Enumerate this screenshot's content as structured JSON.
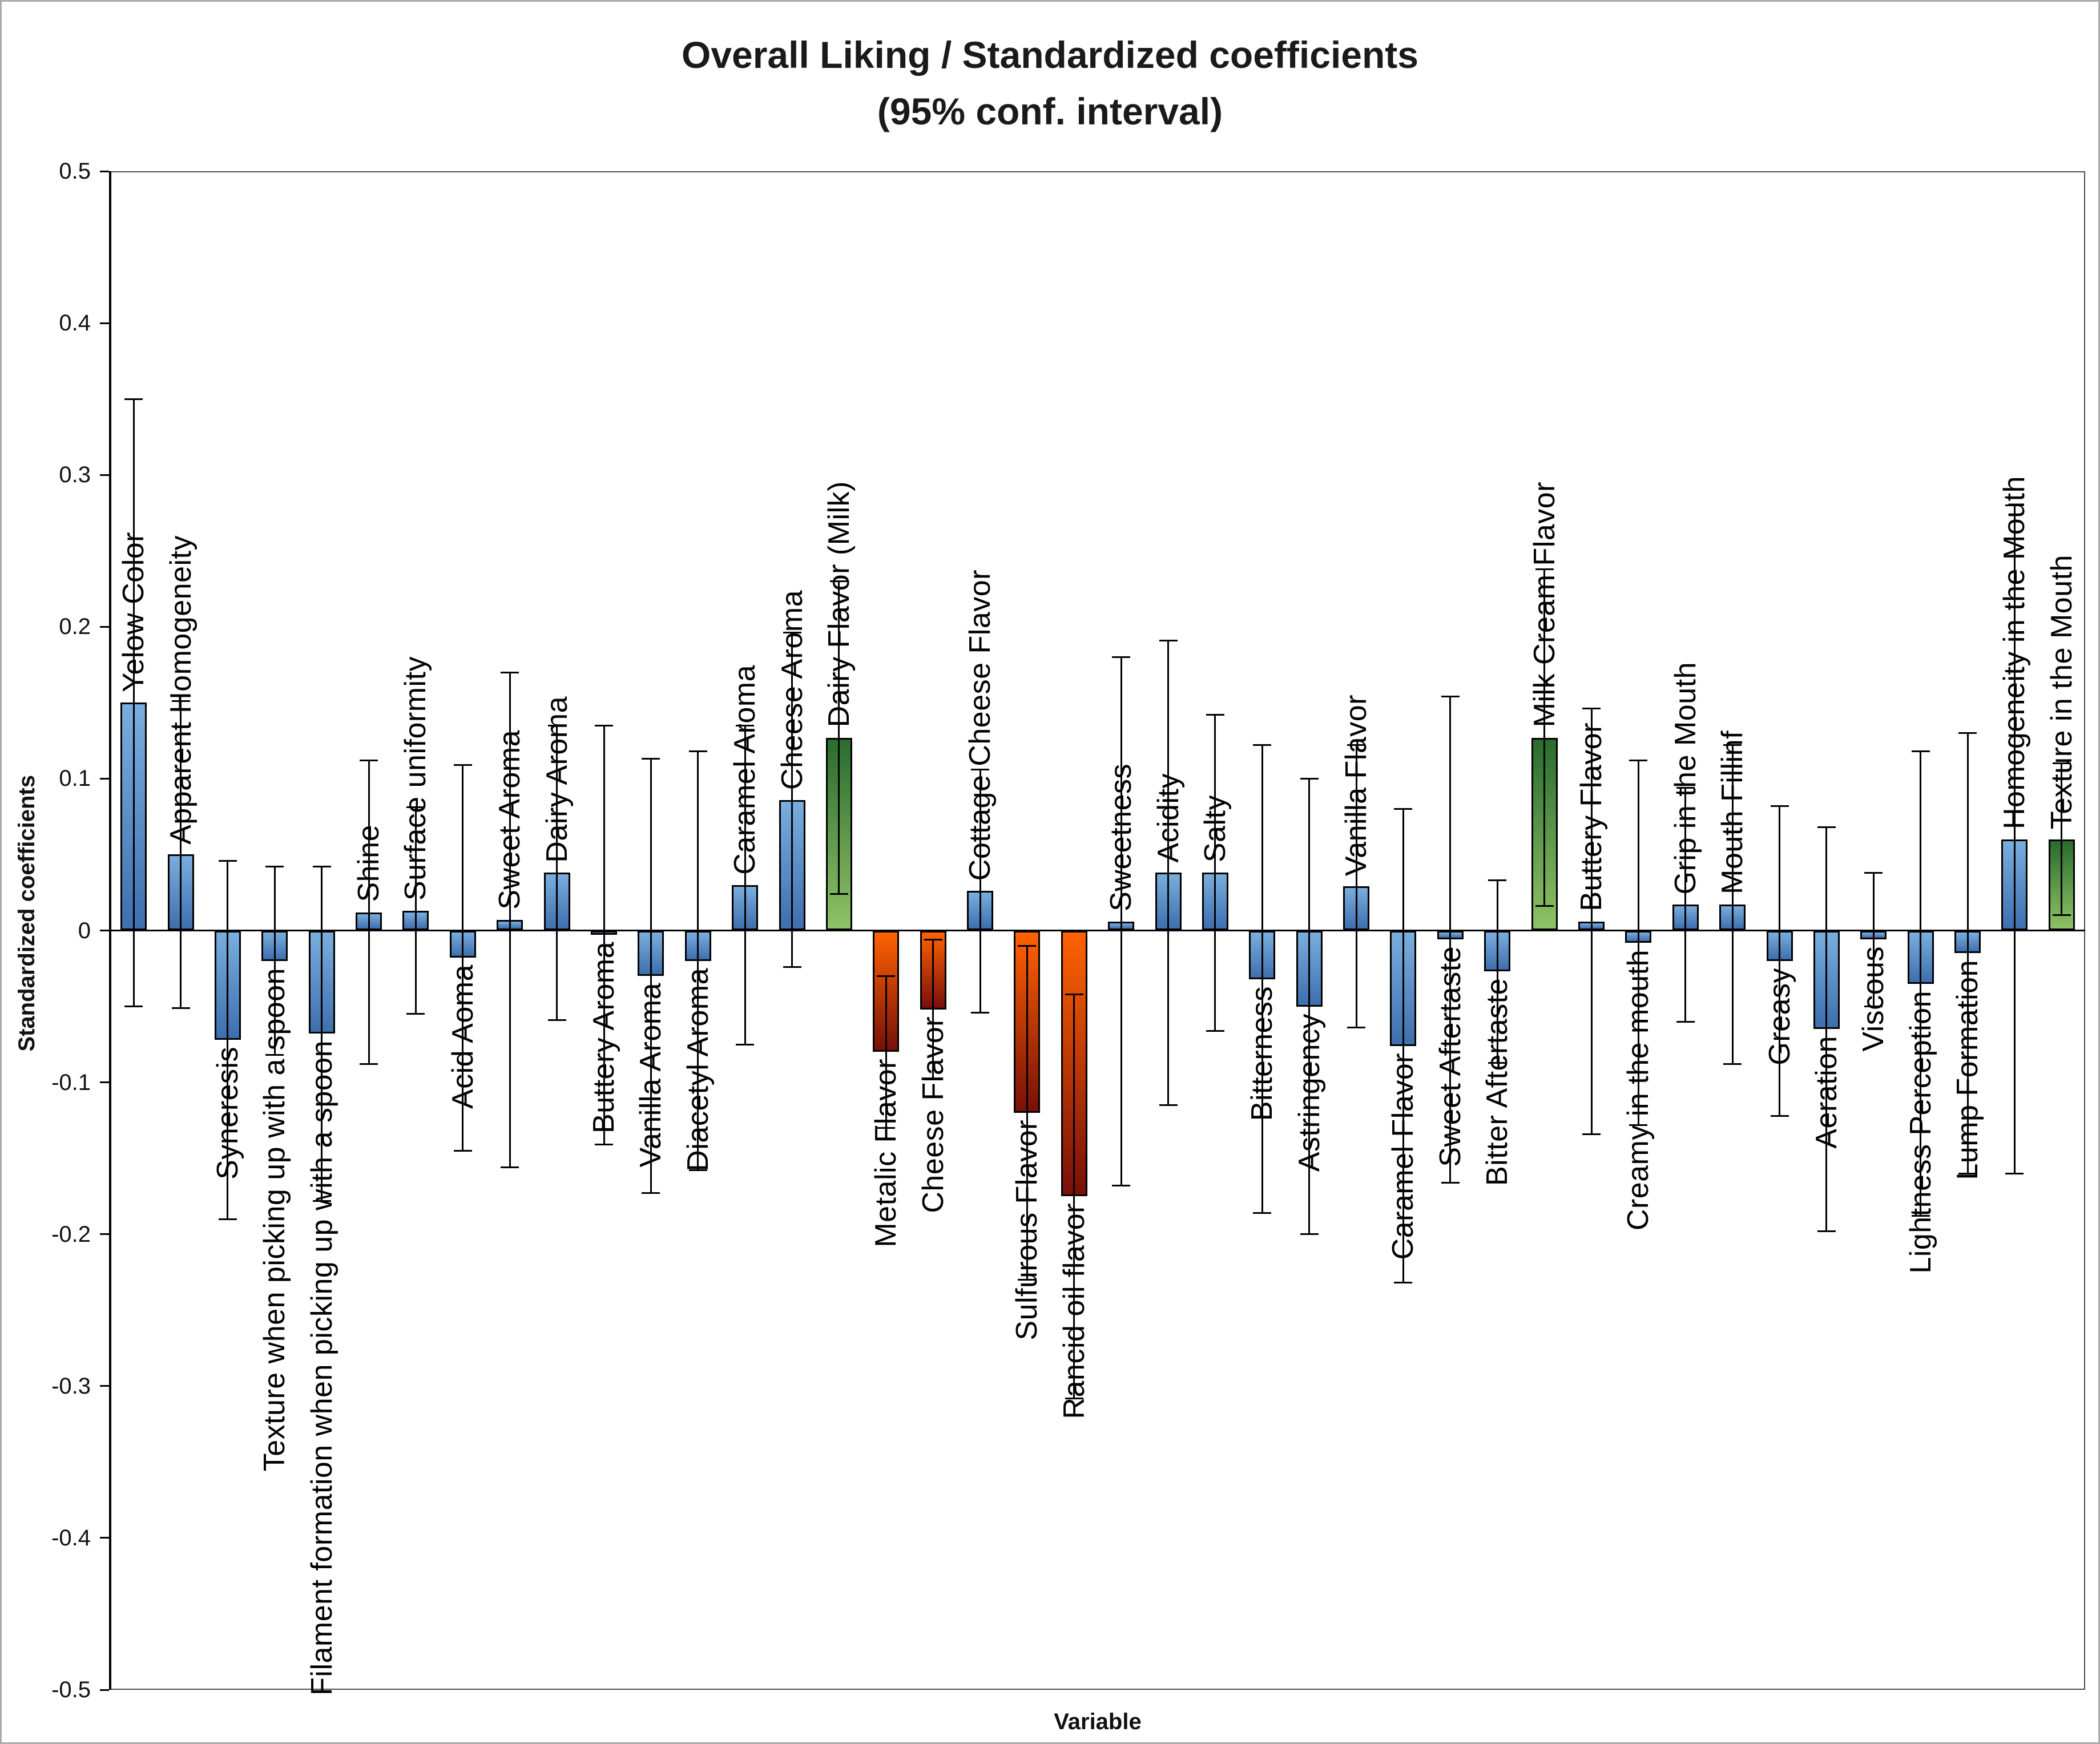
{
  "chart_data": {
    "type": "bar",
    "title": "Overall Liking / Standardized coefficients",
    "subtitle": "(95% conf. interval)",
    "xlabel": "Variable",
    "ylabel": "Standardized coefficients",
    "ylim": [
      -0.5,
      0.5
    ],
    "grid": false,
    "legend": "none",
    "error_bars": "95% confidence interval",
    "y_ticks": [
      {
        "label": "0.5",
        "value": 0.5
      },
      {
        "label": "0.4",
        "value": 0.4
      },
      {
        "label": "0.3",
        "value": 0.3
      },
      {
        "label": "0.2",
        "value": 0.2
      },
      {
        "label": "0.1",
        "value": 0.1
      },
      {
        "label": "0",
        "value": 0
      },
      {
        "label": "-0.1",
        "value": -0.1
      },
      {
        "label": "-0.2",
        "value": -0.2
      },
      {
        "label": "-0.3",
        "value": -0.3
      },
      {
        "label": "-0.4",
        "value": -0.4
      },
      {
        "label": "-0.5",
        "value": -0.5
      }
    ],
    "colors": {
      "bars": {
        "blue": [
          "#7aaede",
          "#3e6fae"
        ],
        "green": [
          "#2a6c2e",
          "#8fc266"
        ],
        "red": [
          "#ff6200",
          "#78100a"
        ]
      },
      "bar_border": "#000000",
      "error": "#000000",
      "axis": "#000000"
    },
    "points": [
      {
        "label": "Yelow Color",
        "value": 0.15,
        "ci": [
          -0.05,
          0.35
        ],
        "color": "blue"
      },
      {
        "label": "Apparent Homogeneity",
        "value": 0.05,
        "ci": [
          -0.051,
          0.151
        ],
        "color": "blue"
      },
      {
        "label": "Syneresis",
        "value": -0.072,
        "ci": [
          -0.19,
          0.046
        ],
        "color": "blue"
      },
      {
        "label": "Texture when picking up with a spoon",
        "value": -0.02,
        "ci": [
          -0.082,
          0.042
        ],
        "color": "blue"
      },
      {
        "label": "Filament formation when picking up with a spoon",
        "value": -0.068,
        "ci": [
          -0.178,
          0.042
        ],
        "color": "blue"
      },
      {
        "label": "Shine",
        "value": 0.012,
        "ci": [
          -0.088,
          0.112
        ],
        "color": "blue"
      },
      {
        "label": "Surface uniformity",
        "value": 0.013,
        "ci": [
          -0.055,
          0.081
        ],
        "color": "blue"
      },
      {
        "label": "Acid Aoma",
        "value": -0.018,
        "ci": [
          -0.145,
          0.109
        ],
        "color": "blue"
      },
      {
        "label": "Sweet Aroma",
        "value": 0.007,
        "ci": [
          -0.156,
          0.17
        ],
        "color": "blue"
      },
      {
        "label": "Dairy Aroma",
        "value": 0.038,
        "ci": [
          -0.059,
          0.135
        ],
        "color": "blue"
      },
      {
        "label": "Buttery Aroma",
        "value": -0.003,
        "ci": [
          -0.141,
          0.135
        ],
        "color": "blue"
      },
      {
        "label": "Vanilla Aroma",
        "value": -0.03,
        "ci": [
          -0.173,
          0.113
        ],
        "color": "blue"
      },
      {
        "label": "Diacetyl Aroma",
        "value": -0.02,
        "ci": [
          -0.158,
          0.118
        ],
        "color": "blue"
      },
      {
        "label": "Caramel Aroma",
        "value": 0.03,
        "ci": [
          -0.075,
          0.135
        ],
        "color": "blue"
      },
      {
        "label": "Cheese Aroma",
        "value": 0.086,
        "ci": [
          -0.024,
          0.196
        ],
        "color": "blue"
      },
      {
        "label": "Dairy Flavor (Milk)",
        "value": 0.127,
        "ci": [
          0.024,
          0.23
        ],
        "color": "green"
      },
      {
        "label": "Metalic Flavor",
        "value": -0.08,
        "ci": [
          -0.13,
          -0.03
        ],
        "color": "red"
      },
      {
        "label": "Cheese Flavor",
        "value": -0.052,
        "ci": [
          -0.098,
          -0.006
        ],
        "color": "red"
      },
      {
        "label": "Cottage Cheese Flavor",
        "value": 0.026,
        "ci": [
          -0.054,
          0.106
        ],
        "color": "blue"
      },
      {
        "label": "Sulfurous Flavor",
        "value": -0.12,
        "ci": [
          -0.23,
          -0.01
        ],
        "color": "red"
      },
      {
        "label": "Rancid oil flavor",
        "value": -0.175,
        "ci": [
          -0.308,
          -0.042
        ],
        "color": "red"
      },
      {
        "label": "Sweetness",
        "value": 0.006,
        "ci": [
          -0.168,
          0.18
        ],
        "color": "blue"
      },
      {
        "label": "Acidity",
        "value": 0.038,
        "ci": [
          -0.115,
          0.191
        ],
        "color": "blue"
      },
      {
        "label": "Salty",
        "value": 0.038,
        "ci": [
          -0.066,
          0.142
        ],
        "color": "blue"
      },
      {
        "label": "Bitterness",
        "value": -0.032,
        "ci": [
          -0.186,
          0.122
        ],
        "color": "blue"
      },
      {
        "label": "Astringency",
        "value": -0.05,
        "ci": [
          -0.2,
          0.1
        ],
        "color": "blue"
      },
      {
        "label": "Vanilla Flavor",
        "value": 0.029,
        "ci": [
          -0.064,
          0.122
        ],
        "color": "blue"
      },
      {
        "label": "Caramel Flavor",
        "value": -0.076,
        "ci": [
          -0.232,
          0.08
        ],
        "color": "blue"
      },
      {
        "label": "Sweet Aftertaste",
        "value": -0.006,
        "ci": [
          -0.166,
          0.154
        ],
        "color": "blue"
      },
      {
        "label": "Bitter Aftertaste",
        "value": -0.027,
        "ci": [
          -0.087,
          0.033
        ],
        "color": "blue"
      },
      {
        "label": "Milk Cream Flavor",
        "value": 0.127,
        "ci": [
          0.016,
          0.238
        ],
        "color": "green"
      },
      {
        "label": "Buttery Flavor",
        "value": 0.006,
        "ci": [
          -0.134,
          0.146
        ],
        "color": "blue"
      },
      {
        "label": "Creamy in the mouth",
        "value": -0.008,
        "ci": [
          -0.128,
          0.112
        ],
        "color": "blue"
      },
      {
        "label": "Grip in the Mouth",
        "value": 0.017,
        "ci": [
          -0.06,
          0.094
        ],
        "color": "blue"
      },
      {
        "label": "Mouth Fillinf",
        "value": 0.017,
        "ci": [
          -0.088,
          0.122
        ],
        "color": "blue"
      },
      {
        "label": "Greasy",
        "value": -0.02,
        "ci": [
          -0.122,
          0.082
        ],
        "color": "blue"
      },
      {
        "label": "Aeration",
        "value": -0.065,
        "ci": [
          -0.198,
          0.068
        ],
        "color": "blue"
      },
      {
        "label": "Viscous",
        "value": -0.006,
        "ci": [
          -0.05,
          0.038
        ],
        "color": "blue"
      },
      {
        "label": "Lightness Perception",
        "value": -0.035,
        "ci": [
          -0.188,
          0.118
        ],
        "color": "blue"
      },
      {
        "label": "Lump Formation",
        "value": -0.015,
        "ci": [
          -0.16,
          0.13
        ],
        "color": "blue"
      },
      {
        "label": "Homogeneity in the Mouth",
        "value": 0.06,
        "ci": [
          -0.16,
          0.28
        ],
        "color": "blue"
      },
      {
        "label": "Texture in the Mouth",
        "value": 0.06,
        "ci": [
          0.01,
          0.11
        ],
        "color": "green"
      }
    ]
  }
}
